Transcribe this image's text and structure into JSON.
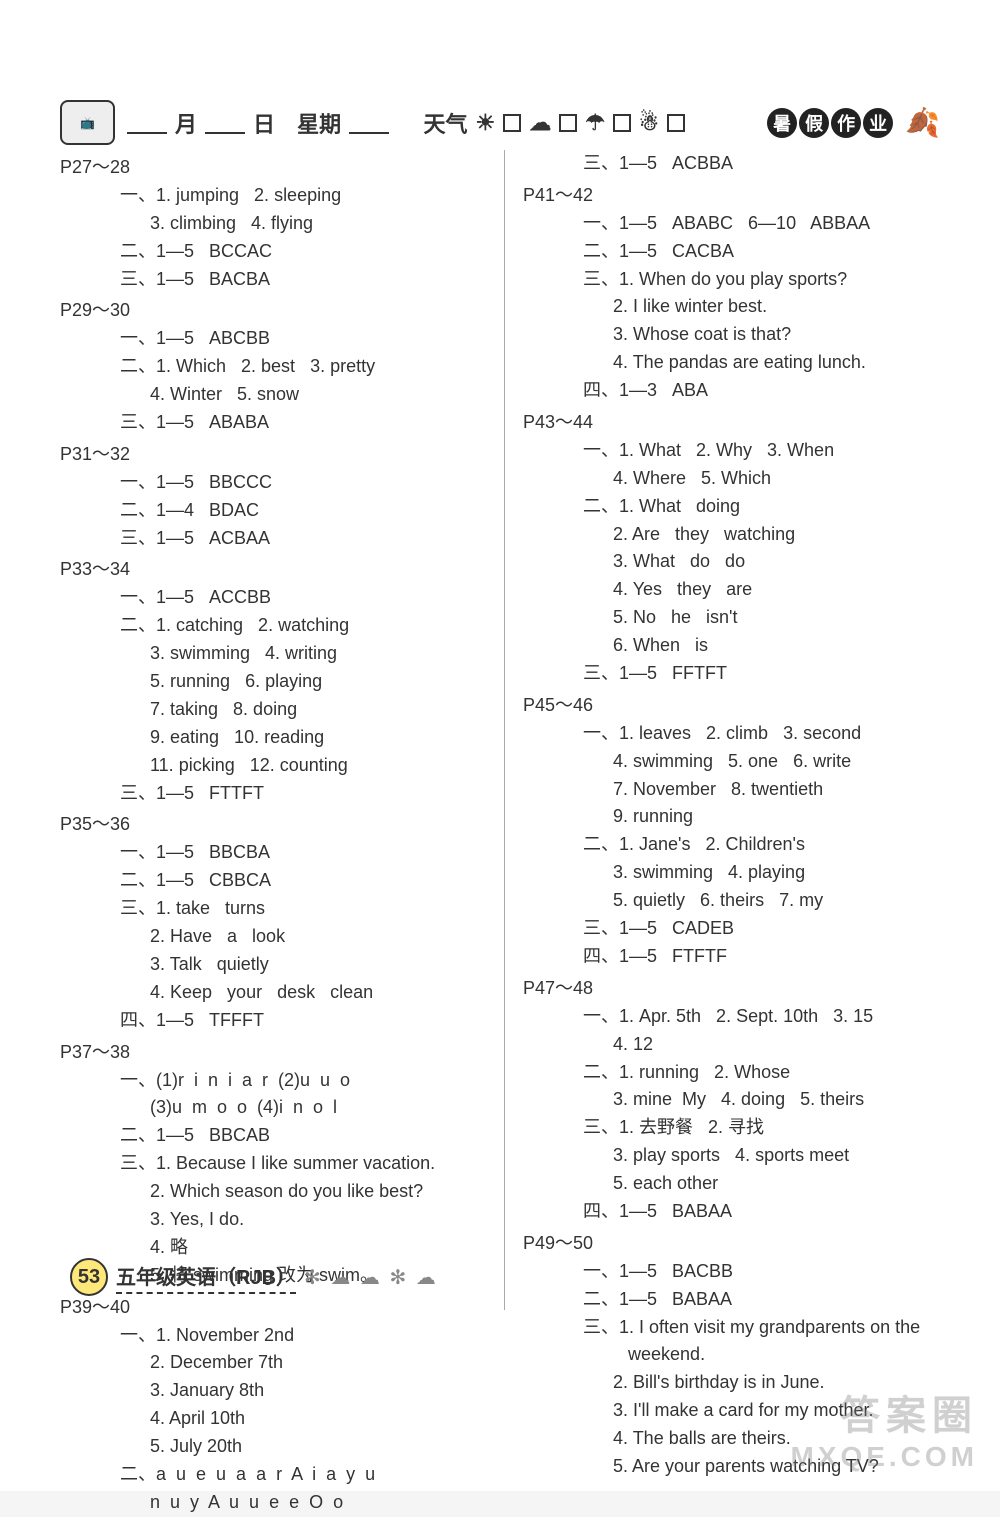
{
  "header": {
    "month_label": "月",
    "day_label": "日",
    "week_label": "星期",
    "weather_label": "天气",
    "weather_icons": [
      "☀",
      "☁",
      "☂",
      "☃"
    ],
    "badges": [
      "暑",
      "假",
      "作",
      "业"
    ],
    "leaf": "🍂"
  },
  "footer": {
    "page_num": "53",
    "title": "五年级英语（RJB）",
    "clouds": "✻ ☁ ☁ ✻ ☁"
  },
  "watermark": {
    "line1": "答案圈",
    "line2": "MXQE.COM"
  },
  "left": [
    {
      "cls": "section-title",
      "t": "P27～28"
    },
    {
      "cls": "answer-line",
      "t": "一、1. jumping   2. sleeping"
    },
    {
      "cls": "answer-line sub",
      "t": "3. climbing   4. flying"
    },
    {
      "cls": "answer-line",
      "t": "二、1—5   BCCAC"
    },
    {
      "cls": "answer-line",
      "t": "三、1—5   BACBA"
    },
    {
      "cls": "section-title",
      "t": "P29～30"
    },
    {
      "cls": "answer-line",
      "t": "一、1—5   ABCBB"
    },
    {
      "cls": "answer-line",
      "t": "二、1. Which   2. best   3. pretty"
    },
    {
      "cls": "answer-line sub",
      "t": "4. Winter   5. snow"
    },
    {
      "cls": "answer-line",
      "t": "三、1—5   ABABA"
    },
    {
      "cls": "section-title",
      "t": "P31～32"
    },
    {
      "cls": "answer-line",
      "t": "一、1—5   BBCCC"
    },
    {
      "cls": "answer-line",
      "t": "二、1—4   BDAC"
    },
    {
      "cls": "answer-line",
      "t": "三、1—5   ACBAA"
    },
    {
      "cls": "section-title",
      "t": "P33～34"
    },
    {
      "cls": "answer-line",
      "t": "一、1—5   ACCBB"
    },
    {
      "cls": "answer-line",
      "t": "二、1. catching   2. watching"
    },
    {
      "cls": "answer-line sub",
      "t": "3. swimming   4. writing"
    },
    {
      "cls": "answer-line sub",
      "t": "5. running   6. playing"
    },
    {
      "cls": "answer-line sub",
      "t": "7. taking   8. doing"
    },
    {
      "cls": "answer-line sub",
      "t": "9. eating   10. reading"
    },
    {
      "cls": "answer-line sub",
      "t": "11. picking   12. counting"
    },
    {
      "cls": "answer-line",
      "t": "三、1—5   FTTFT"
    },
    {
      "cls": "section-title",
      "t": "P35～36"
    },
    {
      "cls": "answer-line",
      "t": "一、1—5   BBCBA"
    },
    {
      "cls": "answer-line",
      "t": "二、1—5   CBBCA"
    },
    {
      "cls": "answer-line",
      "t": "三、1. take   turns"
    },
    {
      "cls": "answer-line sub",
      "t": "2. Have   a   look"
    },
    {
      "cls": "answer-line sub",
      "t": "3. Talk   quietly"
    },
    {
      "cls": "answer-line sub",
      "t": "4. Keep   your   desk   clean"
    },
    {
      "cls": "answer-line",
      "t": "四、1—5   TFFFT"
    },
    {
      "cls": "section-title",
      "t": "P37～38"
    },
    {
      "cls": "answer-line",
      "t": "一、(1)r  i  n  i  a  r  (2)u  u  o"
    },
    {
      "cls": "answer-line sub",
      "t": "(3)u  m  o  o  (4)i  n  o  l"
    },
    {
      "cls": "answer-line",
      "t": "二、1—5   BBCAB"
    },
    {
      "cls": "answer-line",
      "t": "三、1. Because I like summer vacation."
    },
    {
      "cls": "answer-line sub",
      "t": "2. Which season do you like best?"
    },
    {
      "cls": "answer-line sub",
      "t": "3. Yes, I do."
    },
    {
      "cls": "answer-line sub",
      "t": "4. 略"
    },
    {
      "cls": "answer-line sub",
      "t": "5. 将 swimming 改为 swim。"
    },
    {
      "cls": "section-title",
      "t": "P39～40"
    },
    {
      "cls": "answer-line",
      "t": "一、1. November 2nd"
    },
    {
      "cls": "answer-line sub",
      "t": "2. December 7th"
    },
    {
      "cls": "answer-line sub",
      "t": "3. January 8th"
    },
    {
      "cls": "answer-line sub",
      "t": "4. April 10th"
    },
    {
      "cls": "answer-line sub",
      "t": "5. July 20th"
    },
    {
      "cls": "answer-line",
      "t": "二、a  u  e  u  a  a  r  A  i  a  y  u"
    },
    {
      "cls": "answer-line sub",
      "t": "n  u  y  A  u  u  e  e  O  o"
    }
  ],
  "right": [
    {
      "cls": "answer-line",
      "t": "三、1—5   ACBBA"
    },
    {
      "cls": "section-title",
      "t": "P41～42"
    },
    {
      "cls": "answer-line",
      "t": "一、1—5   ABABC   6—10   ABBAA"
    },
    {
      "cls": "answer-line",
      "t": "二、1—5   CACBA"
    },
    {
      "cls": "answer-line",
      "t": "三、1. When do you play sports?"
    },
    {
      "cls": "answer-line sub",
      "t": "2. I like winter best."
    },
    {
      "cls": "answer-line sub",
      "t": "3. Whose coat is that?"
    },
    {
      "cls": "answer-line sub",
      "t": "4. The pandas are eating lunch."
    },
    {
      "cls": "answer-line",
      "t": "四、1—3   ABA"
    },
    {
      "cls": "section-title",
      "t": "P43～44"
    },
    {
      "cls": "answer-line",
      "t": "一、1. What   2. Why   3. When"
    },
    {
      "cls": "answer-line sub",
      "t": "4. Where   5. Which"
    },
    {
      "cls": "answer-line",
      "t": "二、1. What   doing"
    },
    {
      "cls": "answer-line sub",
      "t": "2. Are   they   watching"
    },
    {
      "cls": "answer-line sub",
      "t": "3. What   do   do"
    },
    {
      "cls": "answer-line sub",
      "t": "4. Yes   they   are"
    },
    {
      "cls": "answer-line sub",
      "t": "5. No   he   isn't"
    },
    {
      "cls": "answer-line sub",
      "t": "6. When   is"
    },
    {
      "cls": "answer-line",
      "t": "三、1—5   FFTFT"
    },
    {
      "cls": "section-title",
      "t": "P45～46"
    },
    {
      "cls": "answer-line",
      "t": "一、1. leaves   2. climb   3. second"
    },
    {
      "cls": "answer-line sub",
      "t": "4. swimming   5. one   6. write"
    },
    {
      "cls": "answer-line sub",
      "t": "7. November   8. twentieth"
    },
    {
      "cls": "answer-line sub",
      "t": "9. running"
    },
    {
      "cls": "answer-line",
      "t": "二、1. Jane's   2. Children's"
    },
    {
      "cls": "answer-line sub",
      "t": "3. swimming   4. playing"
    },
    {
      "cls": "answer-line sub",
      "t": "5. quietly   6. theirs   7. my"
    },
    {
      "cls": "answer-line",
      "t": "三、1—5   CADEB"
    },
    {
      "cls": "answer-line",
      "t": "四、1—5   FTFTF"
    },
    {
      "cls": "section-title",
      "t": "P47～48"
    },
    {
      "cls": "answer-line",
      "t": "一、1. Apr. 5th   2. Sept. 10th   3. 15"
    },
    {
      "cls": "answer-line sub",
      "t": "4. 12"
    },
    {
      "cls": "answer-line",
      "t": "二、1. running   2. Whose"
    },
    {
      "cls": "answer-line sub",
      "t": "3. mine  My   4. doing   5. theirs"
    },
    {
      "cls": "answer-line",
      "t": "三、1. 去野餐   2. 寻找"
    },
    {
      "cls": "answer-line sub",
      "t": "3. play sports   4. sports meet"
    },
    {
      "cls": "answer-line sub",
      "t": "5. each other"
    },
    {
      "cls": "answer-line",
      "t": "四、1—5   BABAA"
    },
    {
      "cls": "section-title",
      "t": "P49～50"
    },
    {
      "cls": "answer-line",
      "t": "一、1—5   BACBB"
    },
    {
      "cls": "answer-line",
      "t": "二、1—5   BABAA"
    },
    {
      "cls": "answer-line",
      "t": "三、1. I often visit my grandparents on the"
    },
    {
      "cls": "answer-line sub",
      "t": "   weekend."
    },
    {
      "cls": "answer-line sub",
      "t": "2. Bill's birthday is in June."
    },
    {
      "cls": "answer-line sub",
      "t": "3. I'll make a card for my mother."
    },
    {
      "cls": "answer-line sub",
      "t": "4. The balls are theirs."
    },
    {
      "cls": "answer-line sub",
      "t": "5. Are your parents watching TV?"
    }
  ]
}
